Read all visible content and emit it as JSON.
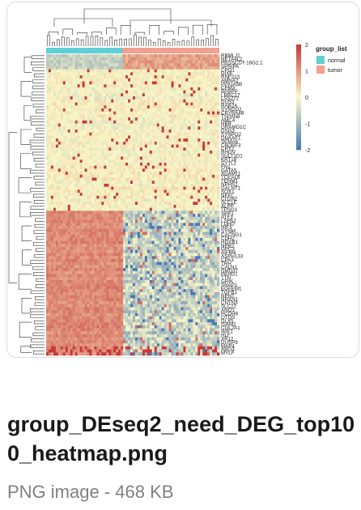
{
  "file": {
    "name": "group_DEseq2_need_DEG_top100_heatmap.png",
    "type": "PNG image",
    "separator": " - ",
    "size": "468 KB"
  },
  "heatmap": {
    "color_scale": {
      "low": "#4a78b5",
      "mid": "#fbf7c6",
      "high": "#c8393a",
      "ticks": [
        "2",
        "1",
        "0",
        "-1",
        "-2"
      ]
    },
    "legend": {
      "title": "group_list",
      "items": [
        {
          "label": "normal",
          "color": "#5fd0d6"
        },
        {
          "label": "tumor",
          "color": "#f2a090"
        }
      ]
    },
    "gene_labels": [
      "RBMLJ1",
      "NETA4L2",
      "PRSSCDT-16G2.1",
      "SPRIPA",
      "CPO1",
      "DIX6",
      "RNF223",
      "AMNA2",
      "PPIUA5B",
      "CPM3",
      "BPBPP",
      "LRRC17",
      "LSS272",
      "DUS3",
      "RAB2A",
      "SYNGD2",
      "CRYBA4B",
      "TSPAN8",
      "AMC4",
      "HBB",
      "GRAMD1C",
      "DSG3",
      "SYNPO2",
      "DNAAF1",
      "SEMA6",
      "C6ORF3",
      "CRY2",
      "RHOV",
      "SULT1D1",
      "KRT18",
      "SYTL2",
      "FN1",
      "GATA5",
      "ADAM11",
      "TCEAL6",
      "TENM1",
      "NPHS1",
      "GALNT1",
      "SOX1",
      "NEFL",
      "CLDN2",
      "SLC1E",
      "ALPP",
      "TPSG1",
      "SPP1",
      "ATF3",
      "LSPA2",
      "LDHD",
      "HIF3",
      "SYNM",
      "CACNG1",
      "CDH2",
      "HOXB1",
      "NPR2",
      "GPC3",
      "AIFM4",
      "ASPH133",
      "CPA3",
      "TRH",
      "CALN1",
      "DMD37",
      "PKHD1",
      "TTN",
      "GRIK",
      "SNAP1",
      "EGFEM1",
      "TGFB1",
      "NPNT",
      "NRXN1",
      "CNTN3",
      "SLC22",
      "ANO1",
      "PCDH9",
      "OTOS",
      "DLX5",
      "ISAM2",
      "COL2A1",
      "WIF1",
      "HLF",
      "XR12",
      "DUSP9",
      "MAP4",
      "ABO3",
      "MYLF"
    ]
  }
}
